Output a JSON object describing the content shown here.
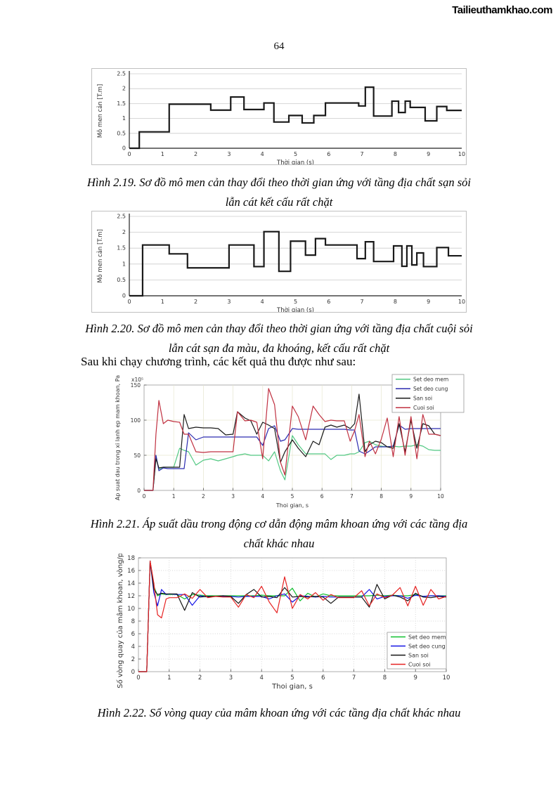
{
  "page": {
    "number": "64",
    "watermark": "Tailieuthamkhao.com"
  },
  "paragraph": "Sau khi chạy chương trình, các kết quả thu được như sau:",
  "captions": {
    "fig219": [
      "Hình 2.19. Sơ đồ mô men cản thay đổi theo thời gian ứng với tầng địa chất sạn sỏi",
      "lẫn cát kết cấu rất chặt"
    ],
    "fig220": [
      "Hình 2.20. Sơ đồ mô men cản thay đổi theo thời gian ứng với tầng địa chất cuội sỏi",
      "lẫn cát sạn đa màu, đa khoáng, kết cấu rất chặt"
    ],
    "fig221": [
      "Hình 2.21. Áp suất dầu trong động cơ dẫn động mâm khoan ứng với các tầng địa",
      "chất khác nhau"
    ],
    "fig222": [
      "Hình 2.22. Số vòng quay của mâm khoan ứng với các tầng địa chất khác nhau"
    ]
  },
  "chart_data": [
    {
      "id": "fig-2-19",
      "type": "step",
      "title": "",
      "xlabel": "Thời gian (s)",
      "ylabel": "Mô men cản [T.m]",
      "xlim": [
        0,
        10
      ],
      "ylim": [
        0,
        2.5
      ],
      "xticks": [
        0,
        1,
        2,
        3,
        4,
        5,
        6,
        7,
        8,
        9,
        10
      ],
      "yticks": [
        0,
        0.5,
        1,
        1.5,
        2,
        2.5
      ],
      "grid": "horizontal",
      "line_color": "#1a1a1a",
      "steps": [
        [
          0,
          0
        ],
        [
          0.3,
          0.55
        ],
        [
          1.2,
          1.48
        ],
        [
          2.45,
          1.28
        ],
        [
          3.05,
          1.72
        ],
        [
          3.45,
          1.3
        ],
        [
          4.05,
          1.52
        ],
        [
          4.35,
          0.88
        ],
        [
          4.8,
          1.1
        ],
        [
          5.2,
          0.85
        ],
        [
          5.55,
          1.1
        ],
        [
          5.9,
          1.52
        ],
        [
          6.9,
          1.42
        ],
        [
          7.1,
          2.05
        ],
        [
          7.35,
          1.08
        ],
        [
          7.9,
          1.58
        ],
        [
          8.1,
          1.2
        ],
        [
          8.3,
          1.58
        ],
        [
          8.45,
          1.37
        ],
        [
          8.9,
          0.92
        ],
        [
          9.25,
          1.4
        ],
        [
          9.55,
          1.27
        ],
        [
          10,
          1.27
        ]
      ]
    },
    {
      "id": "fig-2-20",
      "type": "step",
      "title": "",
      "xlabel": "Thời gian (s)",
      "ylabel": "Mô men cản [T.m]",
      "xlim": [
        0,
        10
      ],
      "ylim": [
        0,
        2.5
      ],
      "xticks": [
        0,
        1,
        2,
        3,
        4,
        5,
        6,
        7,
        8,
        9,
        10
      ],
      "yticks": [
        0,
        0.5,
        1,
        1.5,
        2,
        2.5
      ],
      "grid": "horizontal",
      "line_color": "#1a1a1a",
      "steps": [
        [
          0,
          0
        ],
        [
          0.4,
          1.6
        ],
        [
          1.2,
          1.32
        ],
        [
          1.75,
          0.88
        ],
        [
          3.0,
          1.6
        ],
        [
          3.75,
          0.92
        ],
        [
          4.05,
          2.02
        ],
        [
          4.5,
          0.77
        ],
        [
          4.85,
          1.72
        ],
        [
          5.3,
          1.28
        ],
        [
          5.6,
          1.8
        ],
        [
          5.9,
          1.6
        ],
        [
          6.85,
          1.17
        ],
        [
          7.1,
          1.7
        ],
        [
          7.35,
          1.08
        ],
        [
          7.95,
          1.57
        ],
        [
          8.2,
          0.93
        ],
        [
          8.35,
          1.57
        ],
        [
          8.5,
          0.97
        ],
        [
          8.65,
          1.35
        ],
        [
          8.85,
          0.92
        ],
        [
          9.25,
          1.52
        ],
        [
          9.6,
          1.26
        ],
        [
          10,
          1.26
        ]
      ]
    },
    {
      "id": "fig-2-21",
      "type": "line",
      "title": "",
      "xlabel": "Thoi gian, s",
      "ylabel": "Ap suat dau trong xi lanh ep mam khoan, Pa",
      "exponent": "x10⁵",
      "xlim": [
        0,
        10
      ],
      "ylim": [
        0,
        150
      ],
      "xticks": [
        0,
        1,
        2,
        3,
        4,
        5,
        6,
        7,
        8,
        9,
        10
      ],
      "yticks": [
        0,
        50,
        100,
        150
      ],
      "grid": "solid",
      "grid_color": "#e6e6cf",
      "legend_pos": "top-right",
      "x": [
        0,
        0.3,
        0.4,
        0.5,
        0.65,
        0.8,
        1,
        1.2,
        1.35,
        1.5,
        1.75,
        2,
        2.25,
        2.5,
        2.75,
        3,
        3.15,
        3.4,
        3.6,
        3.8,
        4,
        4.2,
        4.4,
        4.6,
        4.75,
        5,
        5.2,
        5.45,
        5.7,
        5.9,
        6.1,
        6.3,
        6.5,
        6.75,
        6.95,
        7.1,
        7.25,
        7.45,
        7.6,
        7.8,
        8,
        8.2,
        8.4,
        8.6,
        8.8,
        9,
        9.2,
        9.4,
        9.6,
        9.8,
        10
      ],
      "series": [
        {
          "name": "Set deo mem",
          "color": "#52c882",
          "y": [
            0,
            0,
            50,
            30,
            33,
            33,
            33,
            60,
            57,
            55,
            36,
            43,
            45,
            42,
            45,
            48,
            50,
            52,
            50,
            50,
            50,
            42,
            55,
            28,
            15,
            78,
            65,
            52,
            52,
            52,
            52,
            44,
            50,
            50,
            52,
            52,
            55,
            68,
            70,
            65,
            63,
            62,
            63,
            62,
            63,
            63,
            65,
            63,
            58,
            57,
            57
          ]
        },
        {
          "name": "Set deo cung",
          "color": "#2c2cb0",
          "y": [
            0,
            0,
            50,
            28,
            32,
            31,
            31,
            31,
            31,
            82,
            72,
            76,
            76,
            76,
            76,
            76,
            76,
            76,
            76,
            76,
            64,
            88,
            92,
            70,
            72,
            88,
            87,
            87,
            87,
            87,
            87,
            87,
            87,
            87,
            86,
            86,
            56,
            52,
            56,
            62,
            62,
            62,
            63,
            93,
            87,
            88,
            88,
            88,
            88,
            88,
            88
          ]
        },
        {
          "name": "San soi",
          "color": "#1a1a1a",
          "y": [
            0,
            0,
            45,
            32,
            33,
            33,
            33,
            33,
            108,
            88,
            90,
            89,
            89,
            88,
            79,
            80,
            112,
            103,
            99,
            80,
            97,
            93,
            88,
            40,
            55,
            72,
            60,
            48,
            70,
            65,
            90,
            93,
            90,
            93,
            88,
            95,
            137,
            55,
            65,
            70,
            68,
            62,
            60,
            95,
            55,
            100,
            60,
            95,
            92,
            80,
            78
          ]
        },
        {
          "name": "Cuoi soi",
          "color": "#c03040",
          "y": [
            0,
            0,
            80,
            128,
            95,
            100,
            98,
            97,
            80,
            80,
            55,
            54,
            55,
            55,
            55,
            55,
            112,
            99,
            100,
            97,
            45,
            145,
            122,
            40,
            22,
            120,
            105,
            72,
            120,
            108,
            98,
            100,
            99,
            99,
            70,
            85,
            108,
            48,
            70,
            52,
            73,
            103,
            48,
            105,
            50,
            105,
            45,
            108,
            80,
            80,
            78
          ]
        }
      ]
    },
    {
      "id": "fig-2-22",
      "type": "line",
      "title": "",
      "xlabel": "Thoi gian, s",
      "ylabel": "Số vòng quay của mâm khoan, vòng/phút",
      "xlim": [
        0,
        10
      ],
      "ylim": [
        0,
        18
      ],
      "xticks": [
        0,
        1,
        2,
        3,
        4,
        5,
        6,
        7,
        8,
        9,
        10
      ],
      "yticks": [
        0,
        2,
        4,
        6,
        8,
        10,
        12,
        14,
        16,
        18
      ],
      "grid": "dotted",
      "grid_color": "#c8c8c8",
      "legend_pos": "bottom-right",
      "x": [
        0,
        0.27,
        0.38,
        0.5,
        0.62,
        0.75,
        0.9,
        1,
        1.25,
        1.5,
        1.75,
        2,
        2.25,
        2.5,
        2.75,
        3,
        3.25,
        3.5,
        3.75,
        4,
        4.25,
        4.5,
        4.75,
        5,
        5.25,
        5.5,
        5.75,
        6,
        6.25,
        6.5,
        6.75,
        7,
        7.25,
        7.5,
        7.75,
        8,
        8.25,
        8.5,
        8.75,
        9,
        9.25,
        9.5,
        9.75,
        10
      ],
      "series": [
        {
          "name": "Set deo mem",
          "color": "#0fc02f",
          "y": [
            0,
            0,
            17.5,
            13.5,
            12.0,
            12.3,
            12.2,
            12.2,
            12.2,
            11.5,
            12.2,
            12.1,
            12.0,
            12.0,
            12.0,
            12.0,
            12.0,
            12.0,
            12.0,
            12.1,
            12.0,
            12.0,
            12.0,
            13.2,
            11.2,
            12.4,
            11.8,
            12.3,
            12.0,
            12.0,
            12.0,
            12.0,
            12.0,
            12.0,
            12.1,
            12.0,
            12.1,
            12.0,
            12.0,
            12.2,
            11.9,
            12.0,
            12.0,
            12.0
          ]
        },
        {
          "name": "Set deo cung",
          "color": "#1414e6",
          "y": [
            0,
            0,
            17.5,
            12.5,
            10.4,
            13.0,
            12.2,
            12.3,
            12.2,
            12.2,
            10.5,
            12.0,
            11.8,
            11.9,
            11.9,
            11.9,
            11.8,
            11.9,
            11.9,
            11.9,
            11.5,
            12.0,
            12.3,
            11.0,
            12.0,
            11.9,
            11.8,
            11.9,
            11.8,
            11.8,
            11.8,
            11.8,
            11.8,
            13.0,
            11.5,
            11.9,
            12.0,
            12.0,
            11.6,
            12.1,
            11.9,
            12.0,
            12.0,
            11.9
          ]
        },
        {
          "name": "San soi",
          "color": "#141414",
          "y": [
            0,
            0,
            17.5,
            13.0,
            12.2,
            12.4,
            12.3,
            12.3,
            12.3,
            9.7,
            12.5,
            11.8,
            11.9,
            11.9,
            12.0,
            11.9,
            10.8,
            12.2,
            13.0,
            11.8,
            11.9,
            11.7,
            13.3,
            11.8,
            11.9,
            11.8,
            11.9,
            11.8,
            10.8,
            11.8,
            11.8,
            11.8,
            11.8,
            10.2,
            13.8,
            11.5,
            12.1,
            11.8,
            11.2,
            12.4,
            11.8,
            11.7,
            11.9,
            11.8
          ]
        },
        {
          "name": "Cuoi soi",
          "color": "#e62222",
          "y": [
            0,
            0,
            17.5,
            14.0,
            9.0,
            8.5,
            11.5,
            11.7,
            11.7,
            12.3,
            11.6,
            13.0,
            11.7,
            11.9,
            11.8,
            11.8,
            10.2,
            12.2,
            11.7,
            13.5,
            11.0,
            9.3,
            15.0,
            10.0,
            12.2,
            11.5,
            12.5,
            11.3,
            12.2,
            11.7,
            11.7,
            11.7,
            12.8,
            10.4,
            12.3,
            11.7,
            12.1,
            13.3,
            10.4,
            13.5,
            10.5,
            13.0,
            11.5,
            11.9
          ]
        }
      ]
    }
  ]
}
